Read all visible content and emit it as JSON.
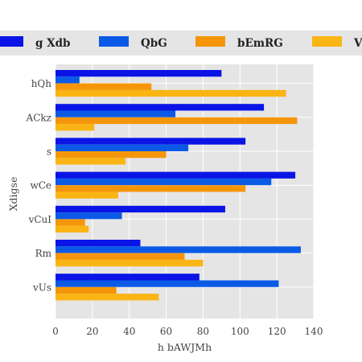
{
  "chart_data": {
    "type": "bar",
    "orientation": "horizontal",
    "categories": [
      "hQh",
      "ACkz",
      "s",
      "wCe",
      "vCuI",
      "Rm",
      "vUs"
    ],
    "series": [
      {
        "name": "g Xdb",
        "color": "#0a14e6",
        "values": [
          90,
          113,
          103,
          130,
          92,
          46,
          78
        ]
      },
      {
        "name": "QbG",
        "color": "#0a5ae6",
        "values": [
          13,
          65,
          72,
          117,
          36,
          133,
          121
        ]
      },
      {
        "name": "bEmRG",
        "color": "#f5960a",
        "values": [
          52,
          131,
          60,
          103,
          16,
          70,
          33
        ]
      },
      {
        "name": "V",
        "color": "#fab414",
        "values": [
          125,
          21,
          38,
          34,
          18,
          80,
          56
        ]
      }
    ],
    "xlabel": "h bAWJMh",
    "ylabel": "Xdigse",
    "xlim": [
      0,
      140
    ],
    "xticks": [
      "0",
      "20",
      "40",
      "60",
      "80",
      "100",
      "120",
      "140"
    ],
    "grid": true,
    "legend_position": "top"
  }
}
